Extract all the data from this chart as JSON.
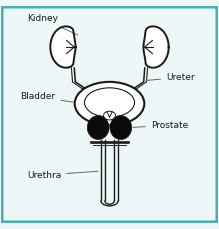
{
  "bg_color": "#eef7f7",
  "border_color": "#4ab0b8",
  "line_color": "#1a1a1a",
  "fill_dark": "#0a0a0a",
  "fill_white": "#ffffff",
  "label_kidney": "Kidney",
  "label_ureter": "Ureter",
  "label_bladder": "Bladder",
  "label_prostate": "Prostate",
  "label_urethra": "Urethra",
  "label_fontsize": 6.5,
  "fig_width": 2.19,
  "fig_height": 2.29,
  "dpi": 100
}
